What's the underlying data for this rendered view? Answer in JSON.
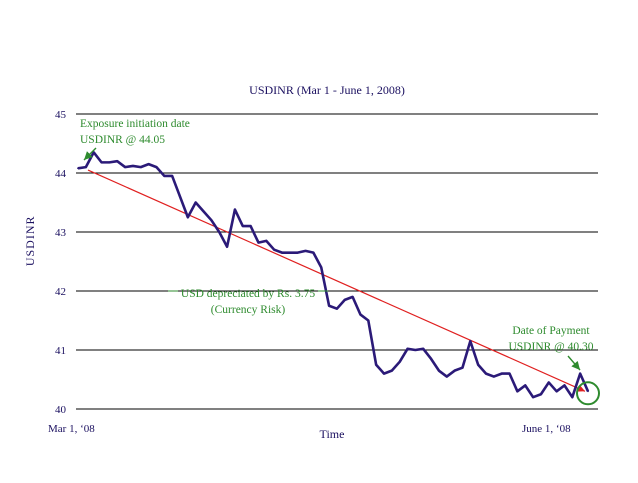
{
  "chart_data": {
    "type": "line",
    "title": "USDINR (Mar 1 - June 1, 2008)",
    "xlabel": "Time",
    "ylabel": "USDINR",
    "ylim": [
      40,
      45
    ],
    "yticks": [
      40,
      41,
      42,
      43,
      44,
      45
    ],
    "x_start_label": "Mar  1, ‘08",
    "x_end_label": "June 1, ‘08",
    "grid": true,
    "series": [
      {
        "color": "#2b1a78",
        "values": [
          44.08,
          44.1,
          44.35,
          44.18,
          44.18,
          44.2,
          44.1,
          44.12,
          44.1,
          44.15,
          44.1,
          43.95,
          43.95,
          43.6,
          43.25,
          43.5,
          43.35,
          43.2,
          43.0,
          42.75,
          43.38,
          43.1,
          43.1,
          42.82,
          42.85,
          42.7,
          42.65,
          42.65,
          42.65,
          42.68,
          42.65,
          42.4,
          41.75,
          41.7,
          41.85,
          41.9,
          41.6,
          41.5,
          40.75,
          40.6,
          40.65,
          40.8,
          41.02,
          41.0,
          41.02,
          40.85,
          40.65,
          40.55,
          40.65,
          40.7,
          41.15,
          40.75,
          40.6,
          40.55,
          40.6,
          40.6,
          40.3,
          40.4,
          40.2,
          40.25,
          40.45,
          40.3,
          40.4,
          40.2,
          40.6,
          40.3
        ]
      }
    ],
    "trend_line": {
      "color": "#e02020",
      "from": 44.05,
      "to": 40.3
    },
    "annotations": {
      "start_line1": "Exposure initiation date",
      "start_line2": "USDINR @ 44.05",
      "mid_line1": "USD depreciated by Rs. 3.75",
      "mid_line2": "(Currency Risk)",
      "end_line1": "Date of Payment",
      "end_line2": "USDINR @ 40.30",
      "color": "#2e8b2e"
    }
  }
}
